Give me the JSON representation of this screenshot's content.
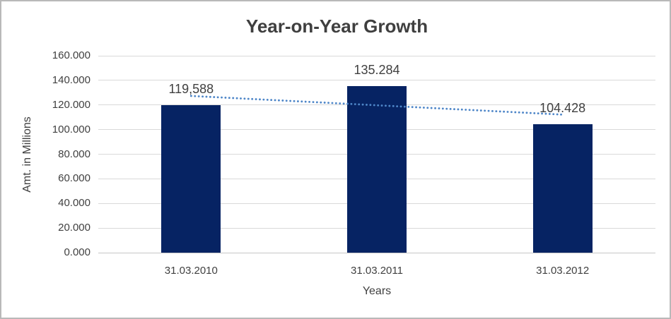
{
  "chart_data": {
    "type": "bar",
    "title": "Year-on-Year Growth",
    "xlabel": "Years",
    "ylabel": "Amt. in Millions",
    "categories": [
      "31.03.2010",
      "31.03.2011",
      "31.03.2012"
    ],
    "values": [
      119.588,
      135.284,
      104.428
    ],
    "bar_labels": [
      "119,588",
      "135.284",
      "104.428"
    ],
    "y_ticks": [
      "0.000",
      "20.000",
      "40.000",
      "60.000",
      "80.000",
      "100.000",
      "120.000",
      "140.000",
      "160.000"
    ],
    "ylim": [
      0,
      160
    ],
    "grid": true,
    "legend": "none",
    "trendline": {
      "kind": "linear",
      "style": "dotted"
    },
    "colors": {
      "bar": "#062363",
      "trendline": "#4e86c8",
      "gridline": "#d9d9d9",
      "axis_line": "#c6c6c6",
      "text": "#404040",
      "frame_border": "#b9b9b9",
      "background": "#ffffff"
    }
  }
}
